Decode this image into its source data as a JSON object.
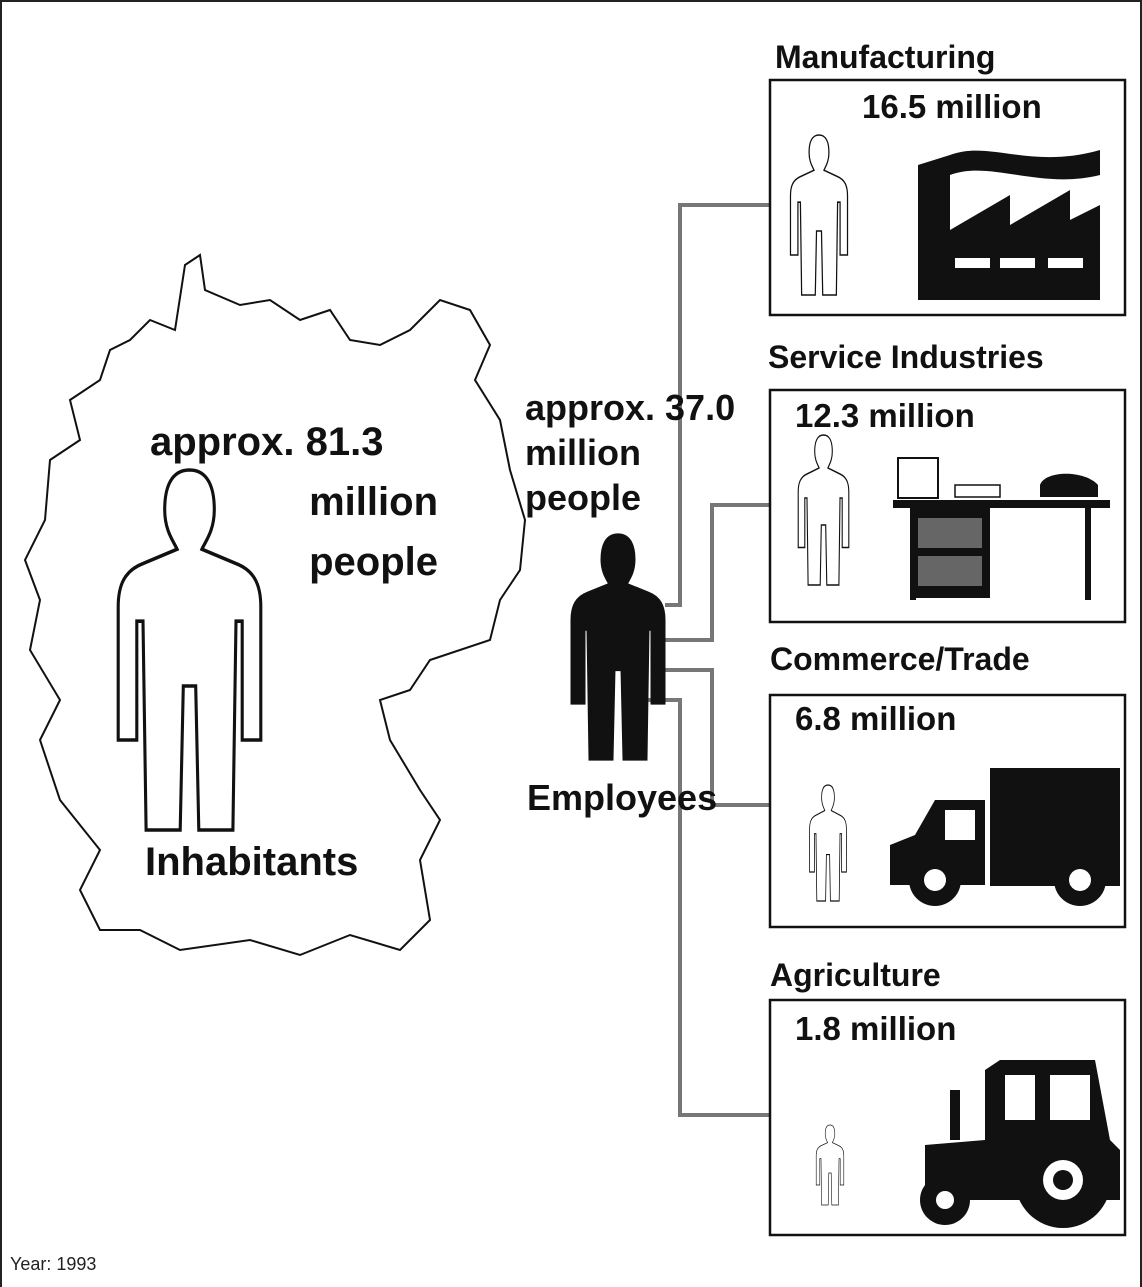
{
  "inhabitants": {
    "count_lines": [
      "approx. 81.3",
      "million",
      "people"
    ],
    "label": "Inhabitants"
  },
  "employees": {
    "count_lines": [
      "approx. 37.0",
      "million",
      "people"
    ],
    "label": "Employees"
  },
  "sectors": [
    {
      "name": "Manufacturing",
      "amount": "16.5 million"
    },
    {
      "name": "Service Industries",
      "amount": "12.3 million"
    },
    {
      "name": "Commerce/Trade",
      "amount": "6.8 million"
    },
    {
      "name": "Agriculture",
      "amount": "1.8 million"
    }
  ],
  "footer": "Year: 1993"
}
